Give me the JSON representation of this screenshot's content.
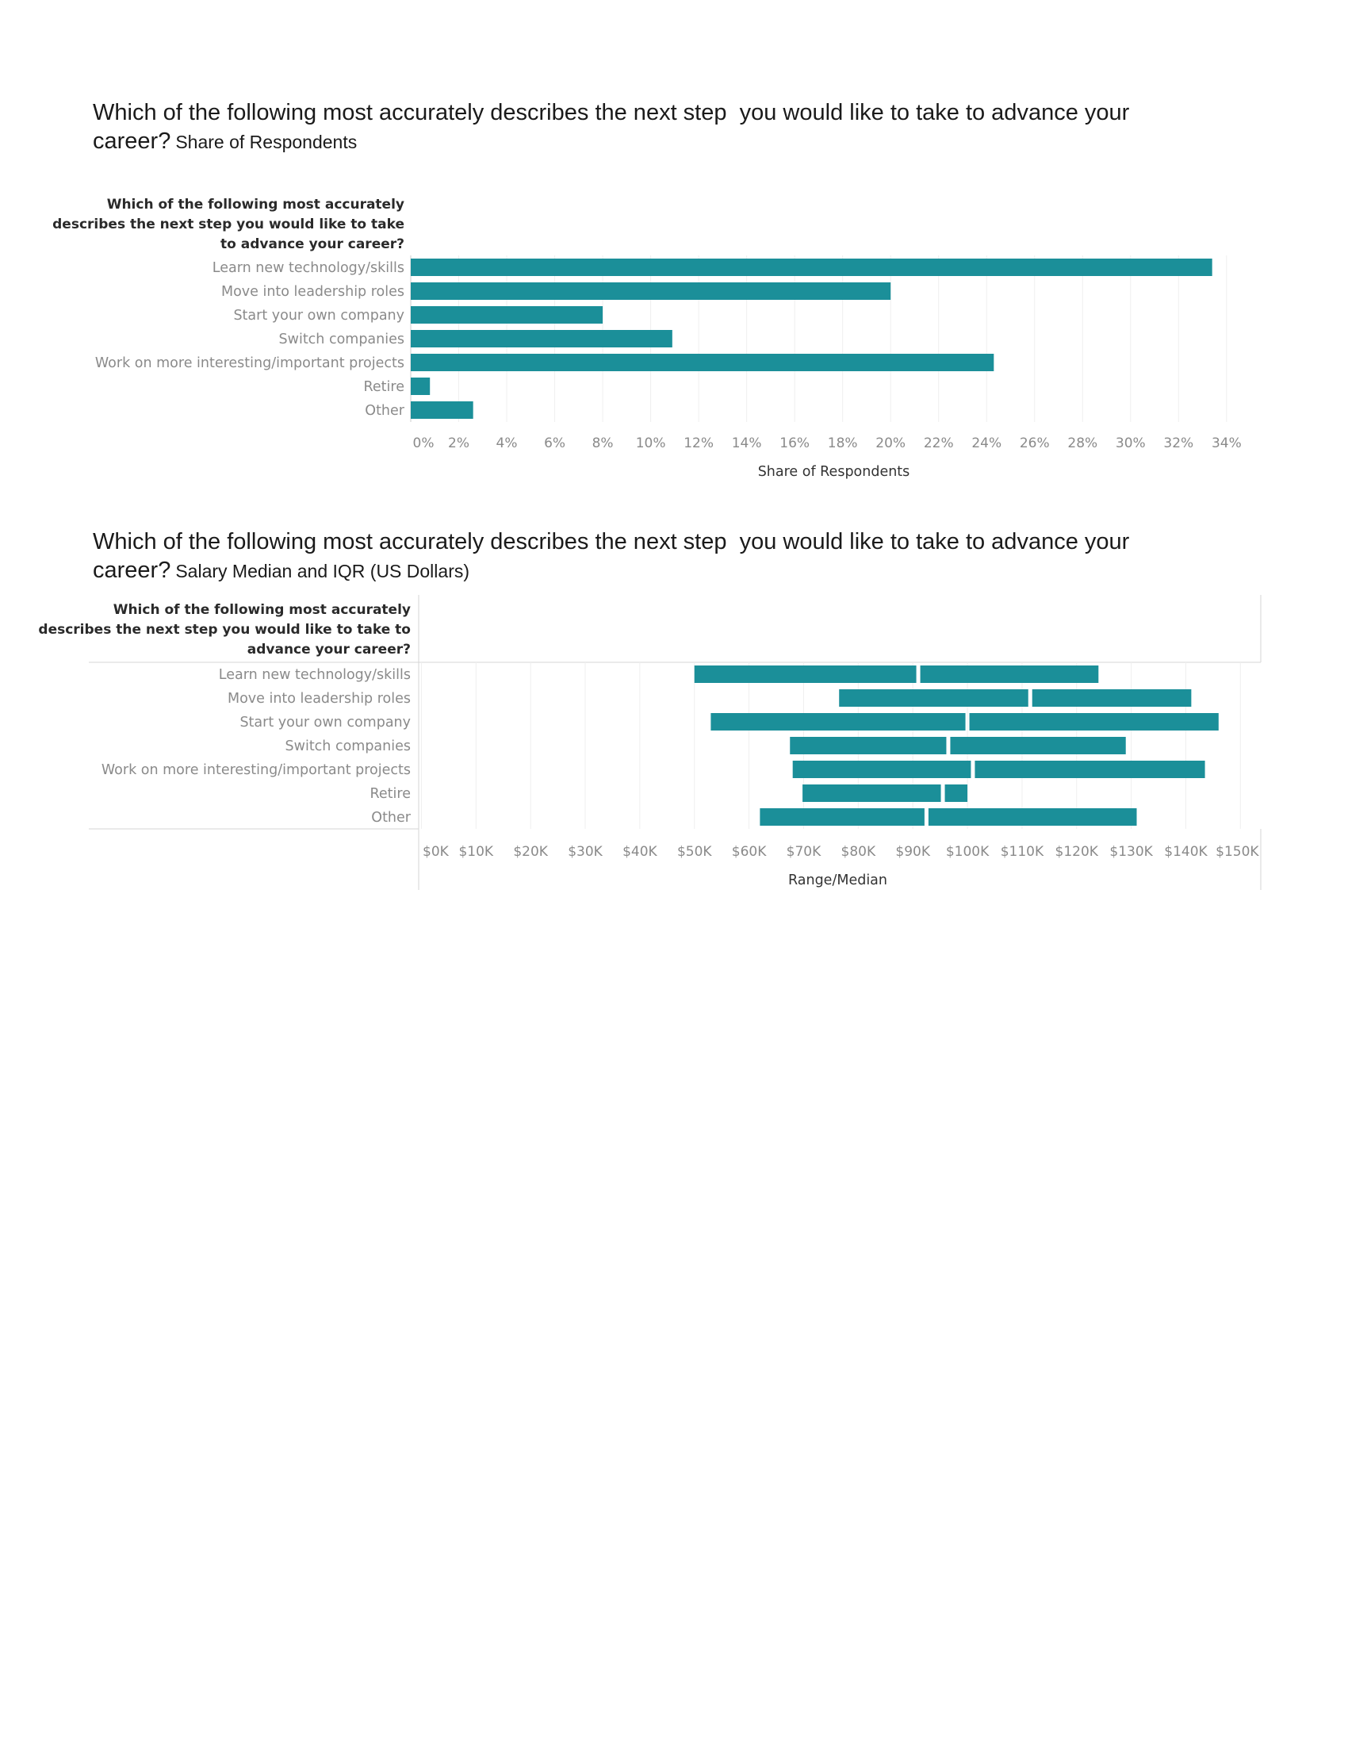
{
  "chart_data": [
    {
      "type": "bar",
      "orientation": "horizontal",
      "title": "Which of the following most accurately describes the next step  you would like to take to advance your career?",
      "subtitle": "Share of Respondents",
      "row_header": [
        "Which of the following most accurately",
        "describes the next step you would like to take",
        "to advance your career?"
      ],
      "categories": [
        "Learn new technology/skills",
        "Move into leadership roles",
        "Start your own company",
        "Switch companies",
        "Work on more interesting/important projects",
        "Retire",
        "Other"
      ],
      "values": [
        33.4,
        20.0,
        8.0,
        10.9,
        24.3,
        0.8,
        2.6
      ],
      "xlabel": "Share of Respondents",
      "xlim": [
        0,
        34.6
      ],
      "ticks": [
        0,
        2,
        4,
        6,
        8,
        10,
        12,
        14,
        16,
        18,
        20,
        22,
        24,
        26,
        28,
        30,
        32,
        34
      ],
      "tick_labels": [
        "0%",
        "2%",
        "4%",
        "6%",
        "8%",
        "10%",
        "12%",
        "14%",
        "16%",
        "18%",
        "20%",
        "22%",
        "24%",
        "26%",
        "28%",
        "30%",
        "32%",
        "34%"
      ],
      "grid": true,
      "color": "#1b8f99"
    },
    {
      "type": "bar",
      "orientation": "horizontal-range",
      "title": "Which of the following most accurately describes the next step  you would like to take to advance your career?",
      "subtitle": "Salary Median and IQR (US Dollars)",
      "row_header": [
        "Which of the following most accurately",
        "describes the next step you would like to take to",
        "advance your career?"
      ],
      "categories": [
        "Learn new technology/skills",
        "Move into leadership roles",
        "Start your own company",
        "Switch companies",
        "Work on more interesting/important projects",
        "Retire",
        "Other"
      ],
      "q1": [
        50000,
        76500,
        53000,
        67500,
        68000,
        69800,
        62000
      ],
      "median": [
        91000,
        111500,
        100000,
        96500,
        101000,
        95500,
        92500
      ],
      "q3": [
        124000,
        141000,
        146000,
        129000,
        143500,
        100000,
        131000
      ],
      "xlabel": "Range/Median",
      "xlim": [
        -500,
        153000
      ],
      "ticks": [
        0,
        10000,
        20000,
        30000,
        40000,
        50000,
        60000,
        70000,
        80000,
        90000,
        100000,
        110000,
        120000,
        130000,
        140000,
        150000
      ],
      "tick_labels": [
        "$0K",
        "$10K",
        "$20K",
        "$30K",
        "$40K",
        "$50K",
        "$60K",
        "$70K",
        "$80K",
        "$90K",
        "$100K",
        "$110K",
        "$120K",
        "$130K",
        "$140K",
        "$150K"
      ],
      "grid": true,
      "color": "#1b8f99"
    }
  ]
}
